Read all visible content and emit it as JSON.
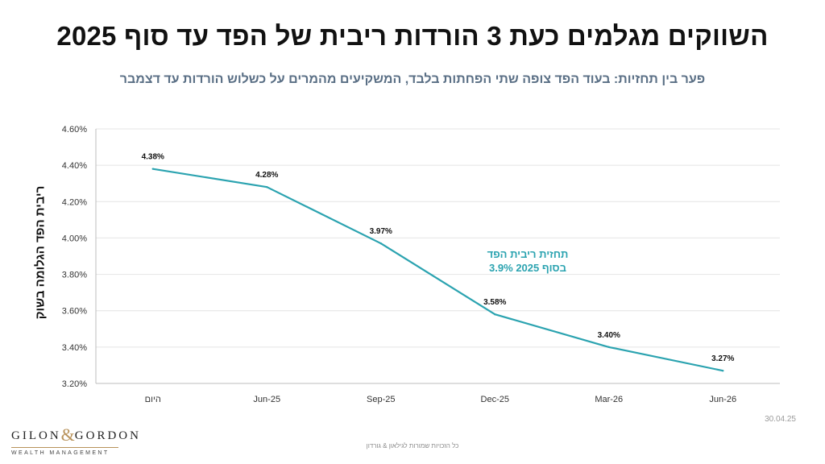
{
  "header": {
    "title": "השווקים מגלמים כעת 3 הורדות ריבית של הפד עד סוף 2025",
    "subtitle": "פער בין תחזיות: בעוד הפד צופה שתי הפחתות בלבד, המשקיעים מהמרים על כשלוש הורדות עד דצמבר"
  },
  "chart_data": {
    "type": "line",
    "categories": [
      "היום",
      "Jun-25",
      "Sep-25",
      "Dec-25",
      "Mar-26",
      "Jun-26"
    ],
    "series": [
      {
        "values": [
          4.38,
          4.28,
          3.97,
          3.58,
          3.4,
          3.27
        ],
        "data_labels": [
          "4.38%",
          "4.28%",
          "3.97%",
          "3.58%",
          "3.40%",
          "3.27%"
        ],
        "color": "#2ba3b0"
      }
    ],
    "ylabel": "ריבית הפד הגלומה בשוק",
    "xlabel": "",
    "ylim": [
      3.2,
      4.6
    ],
    "yticks": [
      {
        "value": 3.2,
        "label": "3.20%"
      },
      {
        "value": 3.4,
        "label": "3.40%"
      },
      {
        "value": 3.6,
        "label": "3.60%"
      },
      {
        "value": 3.8,
        "label": "3.80%"
      },
      {
        "value": 4.0,
        "label": "4.00%"
      },
      {
        "value": 4.2,
        "label": "4.20%"
      },
      {
        "value": 4.4,
        "label": "4.40%"
      },
      {
        "value": 4.6,
        "label": "4.60%"
      }
    ],
    "grid": true,
    "annotation": {
      "line1": "תחזית ריבית הפד",
      "line2": "בסוף 2025 3.9%"
    }
  },
  "footer": {
    "date": "30.04.25",
    "note": "כל הזכויות שמורות לגילאון & גורדון",
    "logo_main_left": "GILON",
    "logo_amp": "&",
    "logo_main_right": "GORDON",
    "logo_sub": "WEALTH MANAGEMENT"
  },
  "colors": {
    "line": "#2ba3b0",
    "subtitle": "#5a6f85",
    "grid": "#e4e4e4",
    "brand_gold": "#b8925a"
  }
}
